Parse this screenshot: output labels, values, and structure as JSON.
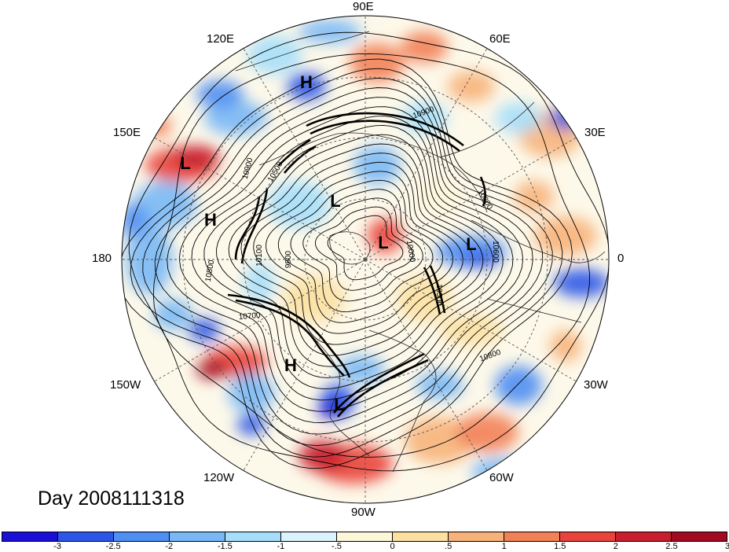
{
  "title": "Day 2008111318",
  "longitude_labels": [
    {
      "text": "90E"
    },
    {
      "text": "60E"
    },
    {
      "text": "30E"
    },
    {
      "text": "0"
    },
    {
      "text": "30W"
    },
    {
      "text": "60W"
    },
    {
      "text": "90W"
    },
    {
      "text": "120W"
    },
    {
      "text": "150W"
    },
    {
      "text": "180"
    },
    {
      "text": "150E"
    },
    {
      "text": "120E"
    }
  ],
  "pressure_centers": [
    {
      "label": "H"
    },
    {
      "label": "L"
    },
    {
      "label": "H"
    },
    {
      "label": "L"
    },
    {
      "label": "L"
    },
    {
      "label": "L"
    },
    {
      "label": "H"
    },
    {
      "label": "L"
    }
  ],
  "contour_labels": [
    "10900",
    "10800",
    "10900",
    "10500",
    "10100",
    "9800",
    "10000",
    "10600",
    "10500",
    "10800",
    "10700",
    "10800"
  ],
  "colorbar": {
    "colors": [
      "#1a0fd6",
      "#2d56e8",
      "#4f8ef2",
      "#79b8f5",
      "#a6defa",
      "#daf3fd",
      "#fdf7da",
      "#fbe0a2",
      "#f7b27a",
      "#f28158",
      "#e9433c",
      "#c81e2d",
      "#a20a22"
    ],
    "ticks": [
      "-3",
      "-2.5",
      "-2",
      "-1.5",
      "-1",
      "-.5",
      "0",
      ".5",
      "1",
      "1.5",
      "2",
      "2.5",
      "3"
    ]
  }
}
